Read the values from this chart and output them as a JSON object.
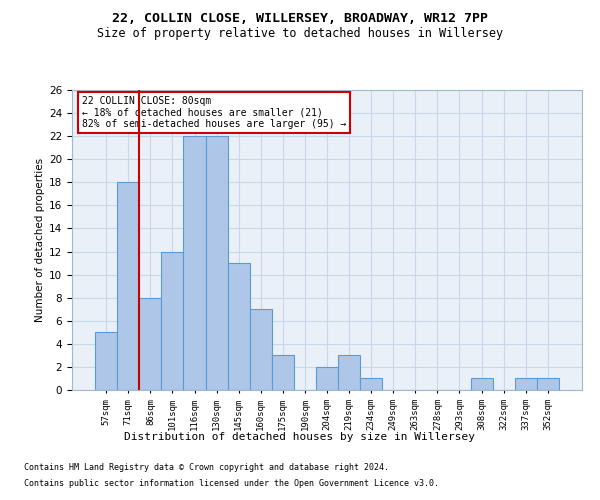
{
  "title1": "22, COLLIN CLOSE, WILLERSEY, BROADWAY, WR12 7PP",
  "title2": "Size of property relative to detached houses in Willersey",
  "xlabel": "Distribution of detached houses by size in Willersey",
  "ylabel": "Number of detached properties",
  "footnote1": "Contains HM Land Registry data © Crown copyright and database right 2024.",
  "footnote2": "Contains public sector information licensed under the Open Government Licence v3.0.",
  "annotation_line1": "22 COLLIN CLOSE: 80sqm",
  "annotation_line2": "← 18% of detached houses are smaller (21)",
  "annotation_line3": "82% of semi-detached houses are larger (95) →",
  "bar_labels": [
    "57sqm",
    "71sqm",
    "86sqm",
    "101sqm",
    "116sqm",
    "130sqm",
    "145sqm",
    "160sqm",
    "175sqm",
    "190sqm",
    "204sqm",
    "219sqm",
    "234sqm",
    "249sqm",
    "263sqm",
    "278sqm",
    "293sqm",
    "308sqm",
    "322sqm",
    "337sqm",
    "352sqm"
  ],
  "bar_values": [
    5,
    18,
    8,
    12,
    22,
    22,
    11,
    7,
    3,
    0,
    2,
    3,
    1,
    0,
    0,
    0,
    0,
    1,
    0,
    1,
    1
  ],
  "bar_color": "#aec6e8",
  "bar_edge_color": "#5b9bd5",
  "reference_line_color": "#cc0000",
  "ylim": [
    0,
    26
  ],
  "yticks": [
    0,
    2,
    4,
    6,
    8,
    10,
    12,
    14,
    16,
    18,
    20,
    22,
    24,
    26
  ],
  "grid_color": "#c8d8e8",
  "background_color": "#eaf0f8",
  "annotation_box_color": "#cc0000"
}
